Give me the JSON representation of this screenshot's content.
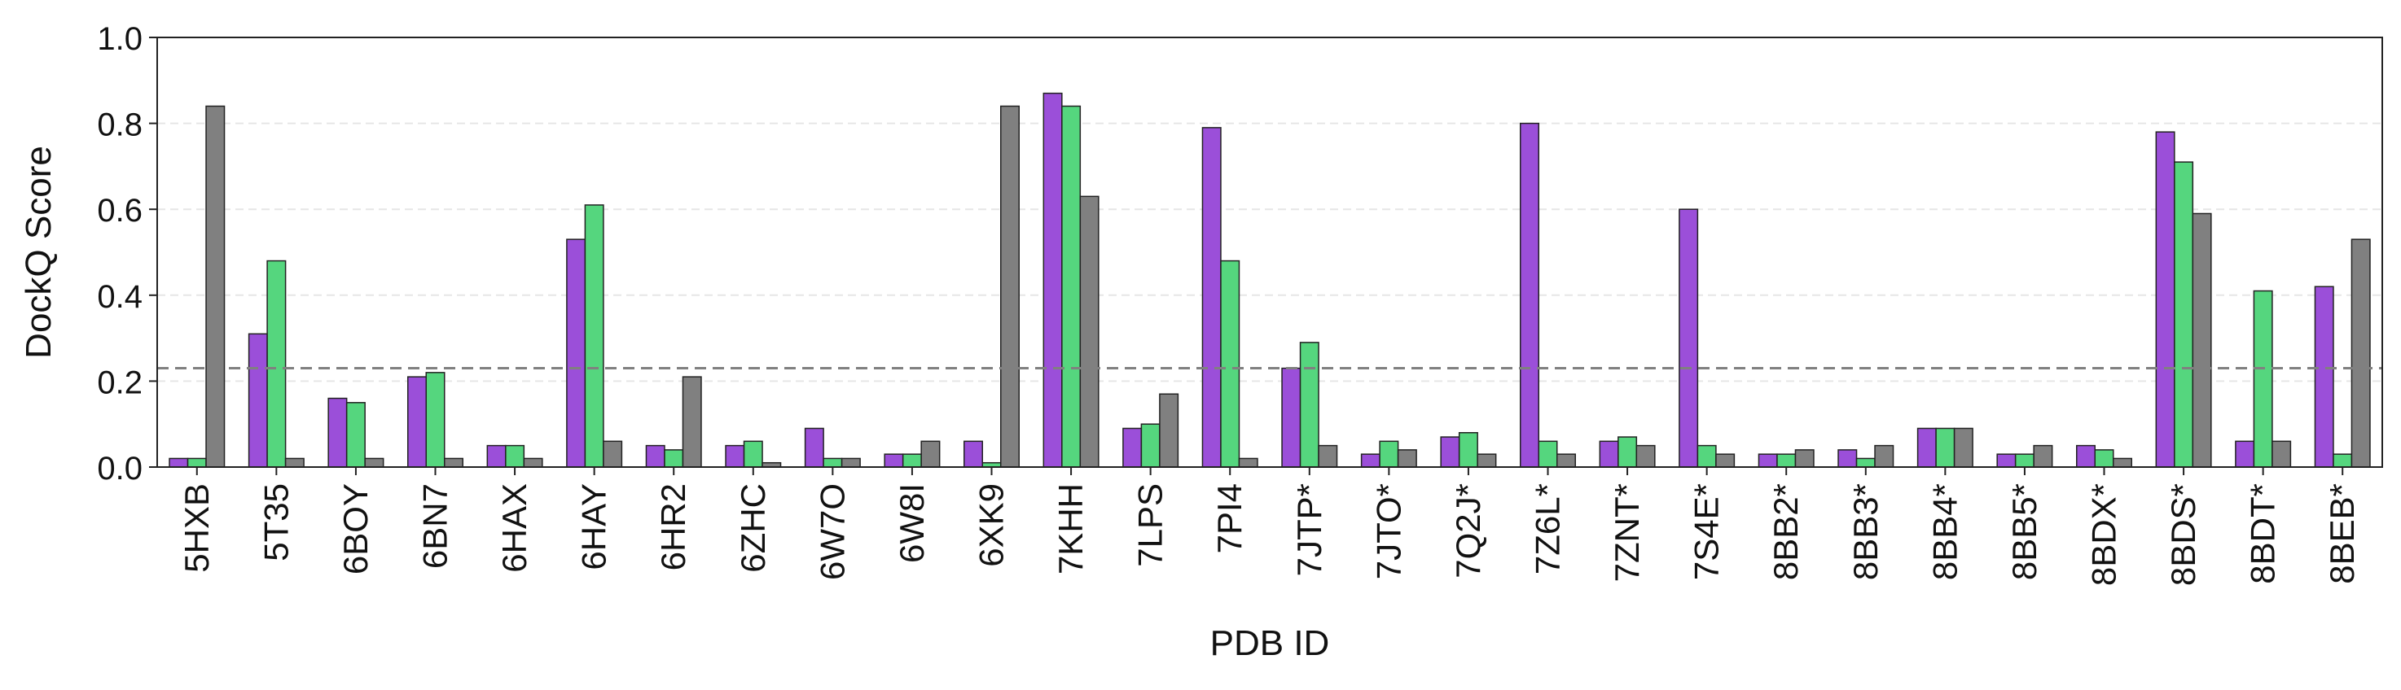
{
  "chart_data": {
    "type": "bar",
    "title": "",
    "xlabel": "PDB ID",
    "ylabel": "DockQ Score",
    "ylim": [
      0,
      1.0
    ],
    "yticks": [
      "0.0",
      "0.2",
      "0.4",
      "0.6",
      "0.8",
      "1.0"
    ],
    "grid": "horizontal dashed",
    "threshold": 0.23,
    "categories": [
      "5HXB",
      "5T35",
      "6BOY",
      "6BN7",
      "6HAX",
      "6HAY",
      "6HR2",
      "6ZHC",
      "6W7O",
      "6W8I",
      "6XK9",
      "7KHH",
      "7LPS",
      "7PI4",
      "7JTP*",
      "7JTO*",
      "7Q2J*",
      "7Z6L*",
      "7ZNT*",
      "7S4E*",
      "8BB2*",
      "8BB3*",
      "8BB4*",
      "8BB5*",
      "8BDX*",
      "8BDS*",
      "8BDT*",
      "8BEB*"
    ],
    "series": [
      {
        "color": "#9b4fd9",
        "values": [
          0.02,
          0.31,
          0.16,
          0.21,
          0.05,
          0.53,
          0.05,
          0.05,
          0.09,
          0.03,
          0.06,
          0.87,
          0.09,
          0.79,
          0.23,
          0.03,
          0.07,
          0.8,
          0.06,
          0.6,
          0.03,
          0.04,
          0.09,
          0.03,
          0.05,
          0.78,
          0.06,
          0.42
        ]
      },
      {
        "color": "#55d67e",
        "values": [
          0.02,
          0.48,
          0.15,
          0.22,
          0.05,
          0.61,
          0.04,
          0.06,
          0.02,
          0.03,
          0.01,
          0.84,
          0.1,
          0.48,
          0.29,
          0.06,
          0.08,
          0.06,
          0.07,
          0.05,
          0.03,
          0.02,
          0.09,
          0.03,
          0.04,
          0.71,
          0.41,
          0.03
        ]
      },
      {
        "color": "#808080",
        "values": [
          0.84,
          0.02,
          0.02,
          0.02,
          0.02,
          0.06,
          0.21,
          0.01,
          0.02,
          0.06,
          0.84,
          0.63,
          0.17,
          0.02,
          0.05,
          0.04,
          0.03,
          0.03,
          0.05,
          0.03,
          0.04,
          0.05,
          0.09,
          0.05,
          0.02,
          0.59,
          0.06,
          0.53
        ]
      }
    ]
  }
}
